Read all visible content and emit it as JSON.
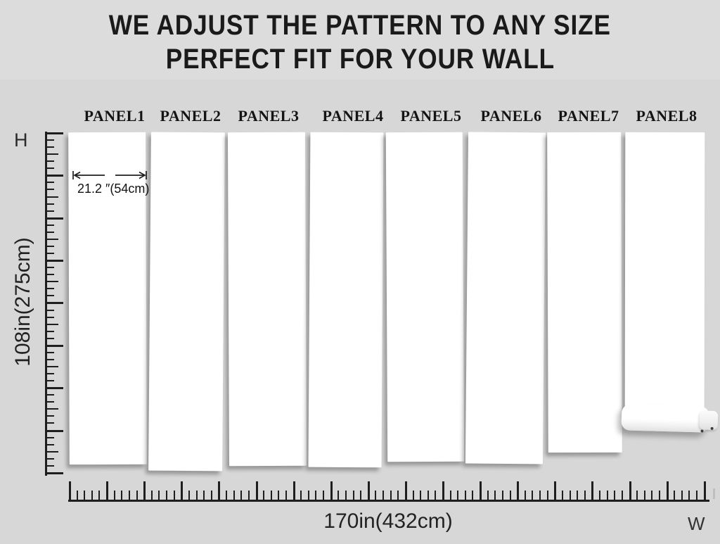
{
  "title": {
    "line1": "WE ADJUST THE PATTERN TO ANY SIZE",
    "line2": "PERFECT FIT FOR YOUR WALL"
  },
  "axes": {
    "height_letter": "H",
    "width_letter": "W",
    "height_label": "108in(275cm)",
    "width_label": "170in(432cm)"
  },
  "annotation": {
    "panel_width": "21.2 ″(54cm)"
  },
  "panels": [
    {
      "label": "PANEL1"
    },
    {
      "label": "PANEL2"
    },
    {
      "label": "PANEL3"
    },
    {
      "label": "PANEL4"
    },
    {
      "label": "PANEL5"
    },
    {
      "label": "PANEL6"
    },
    {
      "label": "PANEL7"
    },
    {
      "label": "PANEL8"
    }
  ],
  "colors": {
    "background": "#d7d7d7",
    "header_background": "#dcdcdc",
    "panel": "#ffffff",
    "ink": "#1e1e1e"
  }
}
